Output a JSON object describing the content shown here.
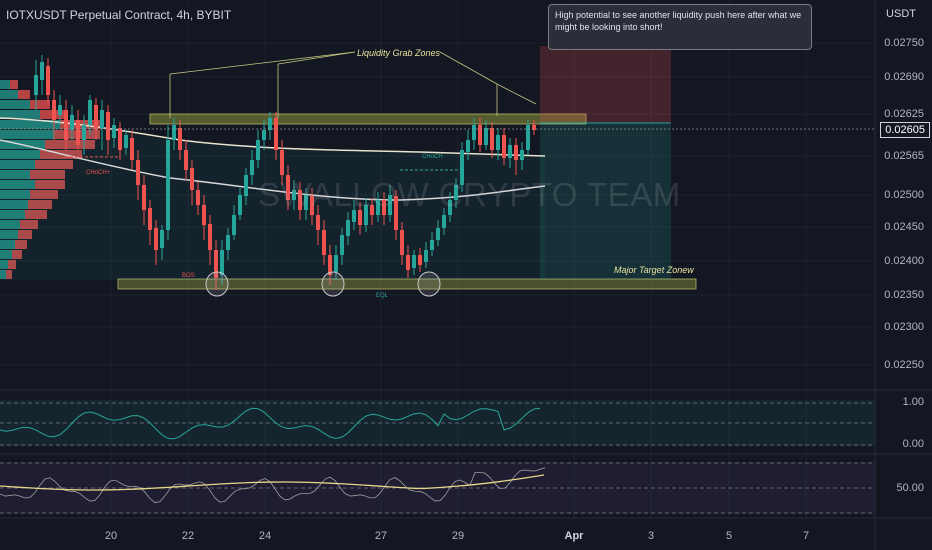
{
  "header": {
    "title": "IOTXUSDT Perpetual Contract, 4h, BYBIT",
    "currency": "USDT"
  },
  "price_axis": {
    "labels": [
      "0.02750",
      "0.02690",
      "0.02625",
      "0.02565",
      "0.02500",
      "0.02450",
      "0.02400",
      "0.02350",
      "0.02300",
      "0.02250"
    ],
    "current_price": "0.02605"
  },
  "rsi_axis": {
    "labels": [
      "1.00",
      "0.00"
    ]
  },
  "osc_axis": {
    "labels": [
      "50.00"
    ]
  },
  "time_axis": {
    "labels": [
      "20",
      "22",
      "24",
      "27",
      "29",
      "Apr",
      "3",
      "5",
      "7"
    ]
  },
  "annotations": {
    "callout": "High potential to see another liquidity push here after what we might be looking into short!",
    "liquidity_label": "Liquidity Grab Zones",
    "target_label": "Major Target Zonew",
    "choch_left": "CHoCH+",
    "choch_right": "CHoCH",
    "eql": "EQL",
    "bos": "BOS",
    "watermark": "SWALLOW CRYPTO TEAM"
  },
  "colors": {
    "background": "#131722",
    "bull": "#26a69a",
    "bear": "#ef5350",
    "zone": "#6b7a2f",
    "callout_bg": "#2a2e39"
  },
  "icons": [
    "liquidity-arrow-icon",
    "eql-circle-icon"
  ]
}
